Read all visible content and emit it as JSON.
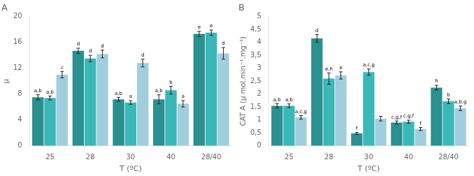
{
  "chart_data": [
    {
      "type": "bar",
      "title": "A",
      "xlabel": "T (ºC)",
      "ylabel": "µ",
      "categories": [
        "25",
        "28",
        "30",
        "40",
        "28/40"
      ],
      "ylim": [
        0,
        20
      ],
      "yticks": [
        0,
        4,
        8,
        12,
        16,
        20
      ],
      "grid": false,
      "series": [
        {
          "color": "#2a9090",
          "values": [
            7.5,
            14.7,
            7.2,
            7.2,
            17.3
          ],
          "errors": [
            0.4,
            0.4,
            0.3,
            0.7,
            0.4
          ],
          "annotations": [
            "a,b",
            "d",
            "a,b",
            "a,b",
            "e"
          ]
        },
        {
          "color": "#3ab8b8",
          "values": [
            7.4,
            13.5,
            6.7,
            8.6,
            17.5
          ],
          "errors": [
            0.3,
            0.5,
            0.3,
            0.6,
            0.4
          ],
          "annotations": [
            "a,b",
            "d",
            "a",
            "b",
            "e"
          ]
        },
        {
          "color": "#a0cedd",
          "values": [
            11.0,
            14.2,
            12.8,
            6.5,
            14.3
          ],
          "errors": [
            0.5,
            0.6,
            0.6,
            0.5,
            0.9
          ],
          "annotations": [
            "c",
            "d",
            "d",
            "a",
            "d"
          ]
        }
      ]
    },
    {
      "type": "bar",
      "title": "B",
      "xlabel": "T (ºC)",
      "ylabel": "CAT A (µ mol.min⁻¹.mg⁻¹)",
      "categories": [
        "25",
        "28",
        "30",
        "40",
        "28/40"
      ],
      "ylim": [
        0,
        5
      ],
      "yticks": [
        0,
        {
          "value": 0.5,
          "label": "0,5"
        },
        1,
        {
          "value": 1.5,
          "label": "1,5"
        },
        2,
        {
          "value": 2.5,
          "label": "2,5"
        },
        3,
        {
          "value": 3.5,
          "label": "3,5"
        },
        4,
        {
          "value": 4.5,
          "label": "4,5"
        },
        5
      ],
      "grid": false,
      "series": [
        {
          "color": "#2a9090",
          "values": [
            1.55,
            4.15,
            0.48,
            0.9,
            2.25
          ],
          "errors": [
            0.08,
            0.15,
            0.04,
            0.06,
            0.09
          ],
          "annotations": [
            "a,b",
            "d",
            "f",
            "c,g,f",
            "h"
          ]
        },
        {
          "color": "#3ab8b8",
          "values": [
            1.55,
            2.6,
            2.85,
            0.93,
            1.72
          ],
          "errors": [
            0.07,
            0.22,
            0.12,
            0.06,
            0.09
          ],
          "annotations": [
            "a,b",
            "e,h",
            "a,c,g",
            "c,g,f",
            "b"
          ]
        },
        {
          "color": "#a0cedd",
          "values": [
            1.1,
            2.72,
            1.05,
            0.65,
            1.45
          ],
          "errors": [
            0.07,
            0.14,
            0.09,
            0.06,
            0.09
          ],
          "annotations": [
            "a,c,g",
            "e",
            null,
            "f",
            "a,b,g"
          ]
        }
      ]
    }
  ]
}
